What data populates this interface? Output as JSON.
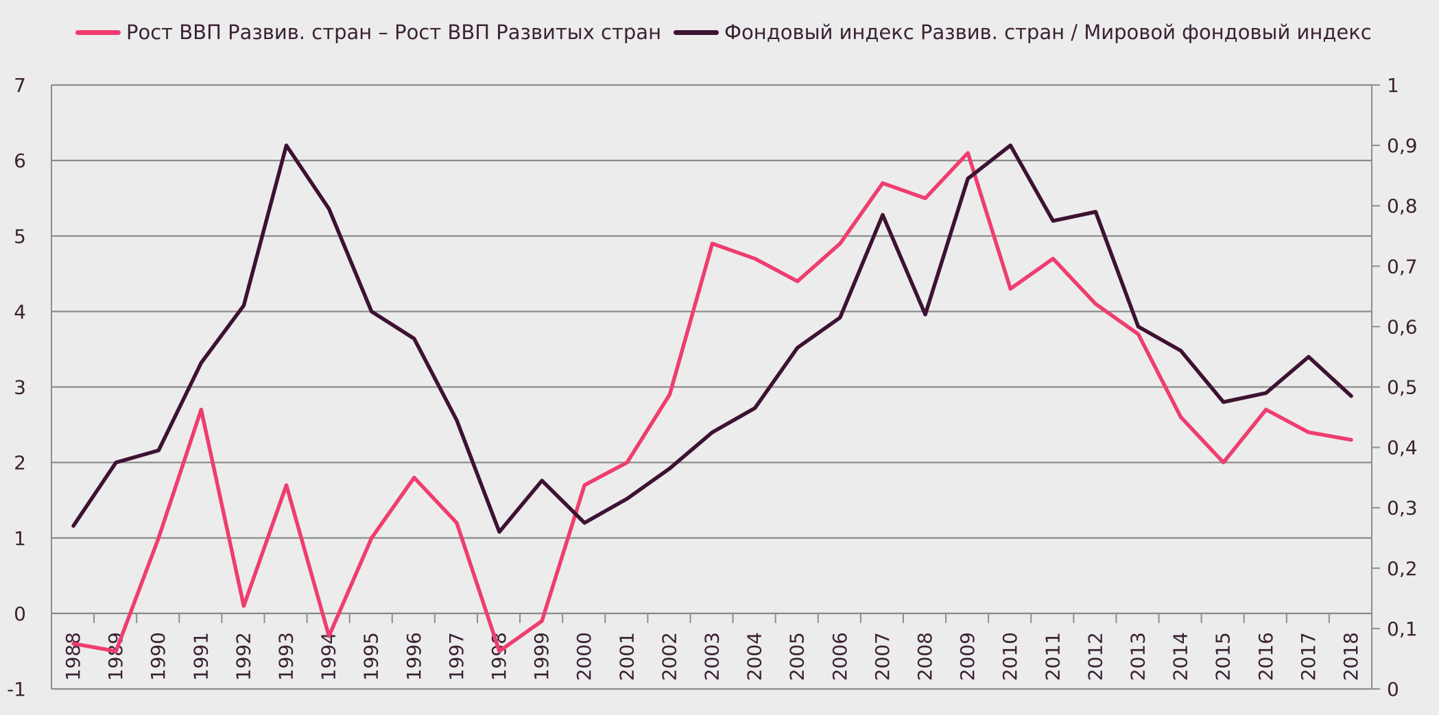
{
  "chart_data": {
    "type": "line",
    "title": "",
    "xlabel": "",
    "ylabel": "",
    "y2label": "",
    "categories": [
      "1988",
      "1989",
      "1990",
      "1991",
      "1992",
      "1993",
      "1994",
      "1995",
      "1996",
      "1997",
      "1998",
      "1999",
      "2000",
      "2001",
      "2002",
      "2003",
      "2004",
      "2005",
      "2006",
      "2007",
      "2008",
      "2009",
      "2010",
      "2011",
      "2012",
      "2013",
      "2014",
      "2015",
      "2016",
      "2017",
      "2018"
    ],
    "ylim": [
      -1,
      7
    ],
    "y_ticks": [
      -1,
      0,
      1,
      2,
      3,
      4,
      5,
      6,
      7
    ],
    "y2lim": [
      0,
      1
    ],
    "y2_ticks": [
      "0",
      "0,1",
      "0,2",
      "0,3",
      "0,4",
      "0,5",
      "0,6",
      "0,7",
      "0,8",
      "0,9",
      "1"
    ],
    "grid": true,
    "legend_position": "top",
    "series": [
      {
        "name": "Рост ВВП Развив. стран – Рост ВВП Развитых стран",
        "axis": "left",
        "color": "#ef3d6f",
        "values": [
          -0.4,
          -0.5,
          1.0,
          2.7,
          0.1,
          1.7,
          -0.3,
          1.0,
          1.8,
          1.2,
          -0.5,
          -0.1,
          1.7,
          2.0,
          2.9,
          4.9,
          4.7,
          4.4,
          4.9,
          5.7,
          5.5,
          6.1,
          4.3,
          4.7,
          4.1,
          3.7,
          2.6,
          2.0,
          2.7,
          2.4,
          2.3
        ]
      },
      {
        "name": "Фондовый индекс Развив. стран / Мировой фондовый индекс",
        "axis": "right",
        "color": "#3d1232",
        "values": [
          0.27,
          0.375,
          0.395,
          0.54,
          0.635,
          0.9,
          0.795,
          0.625,
          0.58,
          0.445,
          0.26,
          0.345,
          0.275,
          0.315,
          0.365,
          0.425,
          0.465,
          0.565,
          0.615,
          0.785,
          0.62,
          0.845,
          0.9,
          0.775,
          0.79,
          0.6,
          0.56,
          0.475,
          0.49,
          0.55,
          0.485
        ]
      }
    ]
  }
}
